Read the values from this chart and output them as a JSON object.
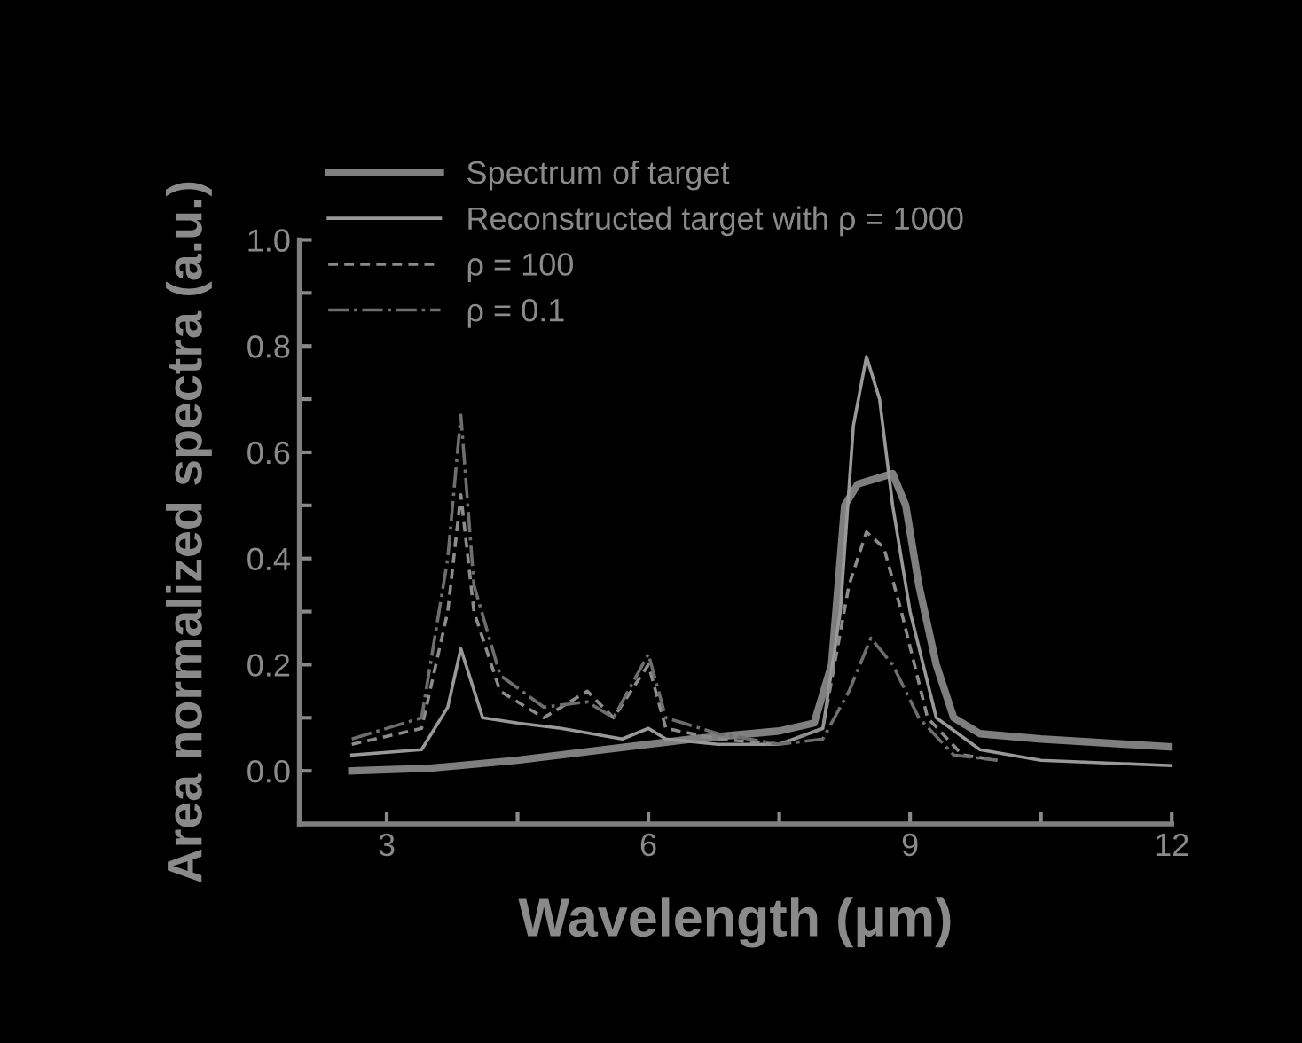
{
  "chart_data": {
    "type": "line",
    "xlabel": "Wavelength (μm)",
    "ylabel": "Area normalized spectra (a.u.)",
    "xlim": [
      2,
      12
    ],
    "ylim": [
      -0.1,
      1.0
    ],
    "xticks": [
      3,
      {
        "value": 4.5,
        "label": null
      },
      6,
      {
        "value": 7.5,
        "label": null
      },
      9,
      {
        "value": 10.5,
        "label": null
      },
      12
    ],
    "yticks": [
      {
        "value": 0,
        "label": "0.0"
      },
      {
        "value": 0.1,
        "label": null
      },
      {
        "value": 0.2,
        "label": "0.2"
      },
      {
        "value": 0.3,
        "label": null
      },
      {
        "value": 0.4,
        "label": "0.4"
      },
      {
        "value": 0.5,
        "label": null
      },
      {
        "value": 0.6,
        "label": "0.6"
      },
      {
        "value": 0.7,
        "label": null
      },
      {
        "value": 0.8,
        "label": "0.8"
      },
      {
        "value": 0.9,
        "label": null
      },
      {
        "value": 1.0,
        "label": "1.0"
      }
    ],
    "grid": false,
    "legend": "top left",
    "marker": "none",
    "series": [
      {
        "name": "Spectrum of target",
        "color": "#7f7f7f",
        "line_style": "solid",
        "x": [
          2.6,
          3.5,
          4.5,
          5.5,
          6.5,
          7.5,
          7.9,
          8.1,
          8.25,
          8.4,
          8.6,
          8.8,
          8.95,
          9.1,
          9.3,
          9.5,
          9.8,
          10.5,
          11.5,
          12
        ],
        "values": [
          0.0,
          0.005,
          0.02,
          0.04,
          0.06,
          0.075,
          0.09,
          0.2,
          0.5,
          0.54,
          0.55,
          0.56,
          0.5,
          0.35,
          0.2,
          0.1,
          0.07,
          0.06,
          0.05,
          0.045
        ]
      },
      {
        "name": "Reconstructed target with ρ = 1000",
        "color": "#999999",
        "line_style": "solid",
        "x": [
          2.6,
          3.4,
          3.7,
          3.85,
          4.1,
          4.5,
          5.0,
          5.7,
          6.0,
          6.2,
          6.8,
          7.5,
          8.0,
          8.2,
          8.35,
          8.5,
          8.65,
          8.8,
          9.0,
          9.3,
          9.8,
          10.5,
          12
        ],
        "values": [
          0.03,
          0.04,
          0.12,
          0.23,
          0.1,
          0.09,
          0.08,
          0.06,
          0.08,
          0.06,
          0.05,
          0.05,
          0.08,
          0.3,
          0.65,
          0.78,
          0.7,
          0.5,
          0.3,
          0.1,
          0.04,
          0.02,
          0.01
        ]
      },
      {
        "name": "ρ = 100",
        "color": "#8c8c8c",
        "line_style": "dashed",
        "x": [
          2.6,
          3.4,
          3.7,
          3.85,
          4.0,
          4.3,
          4.8,
          5.3,
          5.6,
          6.0,
          6.2,
          6.8,
          7.5,
          8.0,
          8.3,
          8.5,
          8.7,
          8.9,
          9.2,
          9.6,
          10.0
        ],
        "values": [
          0.05,
          0.08,
          0.3,
          0.52,
          0.3,
          0.15,
          0.1,
          0.15,
          0.1,
          0.2,
          0.08,
          0.06,
          0.05,
          0.08,
          0.35,
          0.45,
          0.42,
          0.3,
          0.1,
          0.03,
          0.02
        ]
      },
      {
        "name": "ρ = 0.1",
        "color": "#6e6e6e",
        "line_style": "dashdot",
        "x": [
          2.6,
          3.4,
          3.7,
          3.85,
          4.0,
          4.3,
          4.8,
          5.3,
          5.6,
          6.0,
          6.2,
          6.8,
          7.5,
          8.0,
          8.3,
          8.55,
          8.8,
          9.1,
          9.5,
          10.0
        ],
        "values": [
          0.06,
          0.1,
          0.4,
          0.67,
          0.35,
          0.18,
          0.12,
          0.13,
          0.1,
          0.22,
          0.1,
          0.07,
          0.05,
          0.06,
          0.15,
          0.25,
          0.2,
          0.1,
          0.03,
          0.02
        ]
      }
    ]
  }
}
